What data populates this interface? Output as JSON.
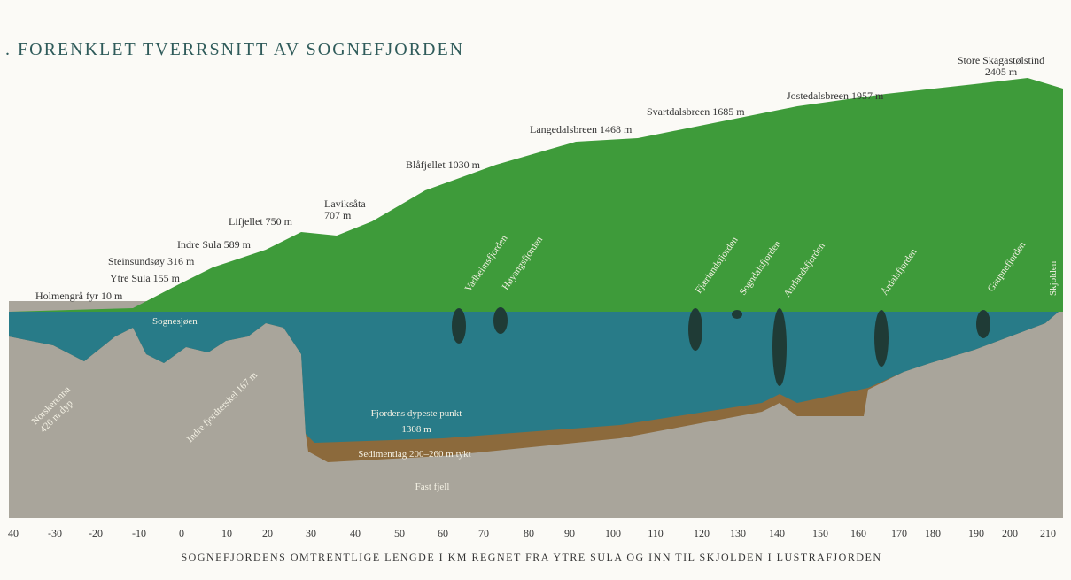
{
  "title": ". FORENKLET TVERRSNITT AV SOGNEFJORDEN",
  "peaks": [
    {
      "label": "Holmengrå fyr 10 m"
    },
    {
      "label": "Ytre Sula 155 m"
    },
    {
      "label": "Steinsundsøy 316 m"
    },
    {
      "label": "Indre Sula 589 m"
    },
    {
      "label": "Lifjellet 750 m"
    },
    {
      "label": [
        "Laviksåta",
        "707 m"
      ]
    },
    {
      "label": "Blåfjellet 1030 m"
    },
    {
      "label": "Langedalsbreen 1468 m"
    },
    {
      "label": "Svartdalsbreen 1685 m"
    },
    {
      "label": "Jostedalsbreen 1957 m"
    },
    {
      "label": [
        "Store Skagastølstind",
        "2405 m"
      ]
    }
  ],
  "fjords": [
    "Sognesjøen",
    "Vadheimsfjorden",
    "Høyangsfjorden",
    "Fjærlandsfjorden",
    "Sogndalsfjorden",
    "Aurlandsfjorden",
    "Årdalsfjorden",
    "Gaupnefjorden",
    "Skjolden"
  ],
  "underwater": {
    "norskerenna": [
      "Norskerenna",
      "420 m dyp"
    ],
    "threshold": "Indre fjordterskel 167 m",
    "deepest": [
      "Fjordens dypeste punkt",
      "1308 m"
    ],
    "sediment": "Sedimentlag 200–260 m tykt",
    "bedrock": "Fast fjell"
  },
  "axis": {
    "ticks": [
      "40",
      "-30",
      "-20",
      "-10",
      "0",
      "10",
      "20",
      "30",
      "40",
      "50",
      "60",
      "70",
      "80",
      "90",
      "100",
      "110",
      "120",
      "130",
      "140",
      "150",
      "160",
      "170",
      "180",
      "190",
      "200",
      "210"
    ],
    "label": "SOGNEFJORDENS OMTRENTLIGE LENGDE I KM REGNET FRA YTRE SULA OG INN TIL SKJOLDEN I LUSTRAFJORDEN"
  }
}
